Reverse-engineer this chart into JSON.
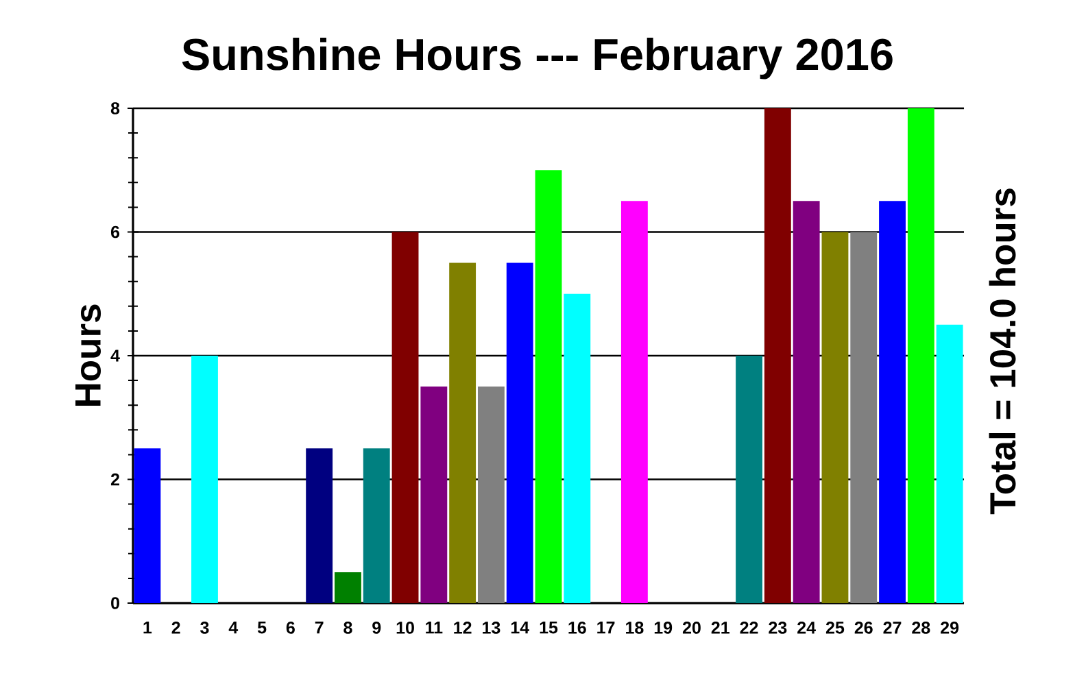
{
  "chart_data": {
    "type": "bar",
    "title": "Sunshine Hours --- February 2016",
    "ylabel": "Hours",
    "categories": [
      "1",
      "2",
      "3",
      "4",
      "5",
      "6",
      "7",
      "8",
      "9",
      "10",
      "11",
      "12",
      "13",
      "14",
      "15",
      "16",
      "17",
      "18",
      "19",
      "20",
      "21",
      "22",
      "23",
      "24",
      "25",
      "26",
      "27",
      "28",
      "29"
    ],
    "values": [
      2.5,
      0,
      4,
      0,
      0,
      0,
      2.5,
      0.5,
      2.5,
      6,
      3.5,
      5.5,
      3.5,
      5.5,
      7,
      5,
      0,
      6.5,
      0,
      0,
      0,
      4,
      8,
      6.5,
      6,
      6,
      6.5,
      8,
      4.5
    ],
    "colors": [
      "#0000ff",
      null,
      "#00ffff",
      null,
      null,
      null,
      "#000080",
      "#008000",
      "#008080",
      "#800000",
      "#800080",
      "#808000",
      "#808080",
      "#0000ff",
      "#00ff00",
      "#00ffff",
      null,
      "#ff00ff",
      null,
      null,
      null,
      "#008080",
      "#800000",
      "#800080",
      "#808000",
      "#808080",
      "#0000ff",
      "#00ff00",
      "#00ffff"
    ],
    "ylim": [
      0,
      8
    ],
    "yticks": [
      0,
      {
        "value": 0.4,
        "label": null
      },
      {
        "value": 0.8,
        "label": null
      },
      {
        "value": 1.2,
        "label": null
      },
      {
        "value": 1.6,
        "label": null
      },
      2,
      {
        "value": 2.4,
        "label": null
      },
      {
        "value": 2.8,
        "label": null
      },
      {
        "value": 3.2,
        "label": null
      },
      {
        "value": 3.6,
        "label": null
      },
      4,
      {
        "value": 4.4,
        "label": null
      },
      {
        "value": 4.8,
        "label": null
      },
      {
        "value": 5.2,
        "label": null
      },
      {
        "value": 5.6,
        "label": null
      },
      6,
      {
        "value": 6.4,
        "label": null
      },
      {
        "value": 6.8,
        "label": null
      },
      {
        "value": 7.2,
        "label": null
      },
      {
        "value": 7.6,
        "label": null
      },
      8
    ],
    "grid": "y",
    "annotations": [
      "Total = 104.0 hours"
    ]
  }
}
